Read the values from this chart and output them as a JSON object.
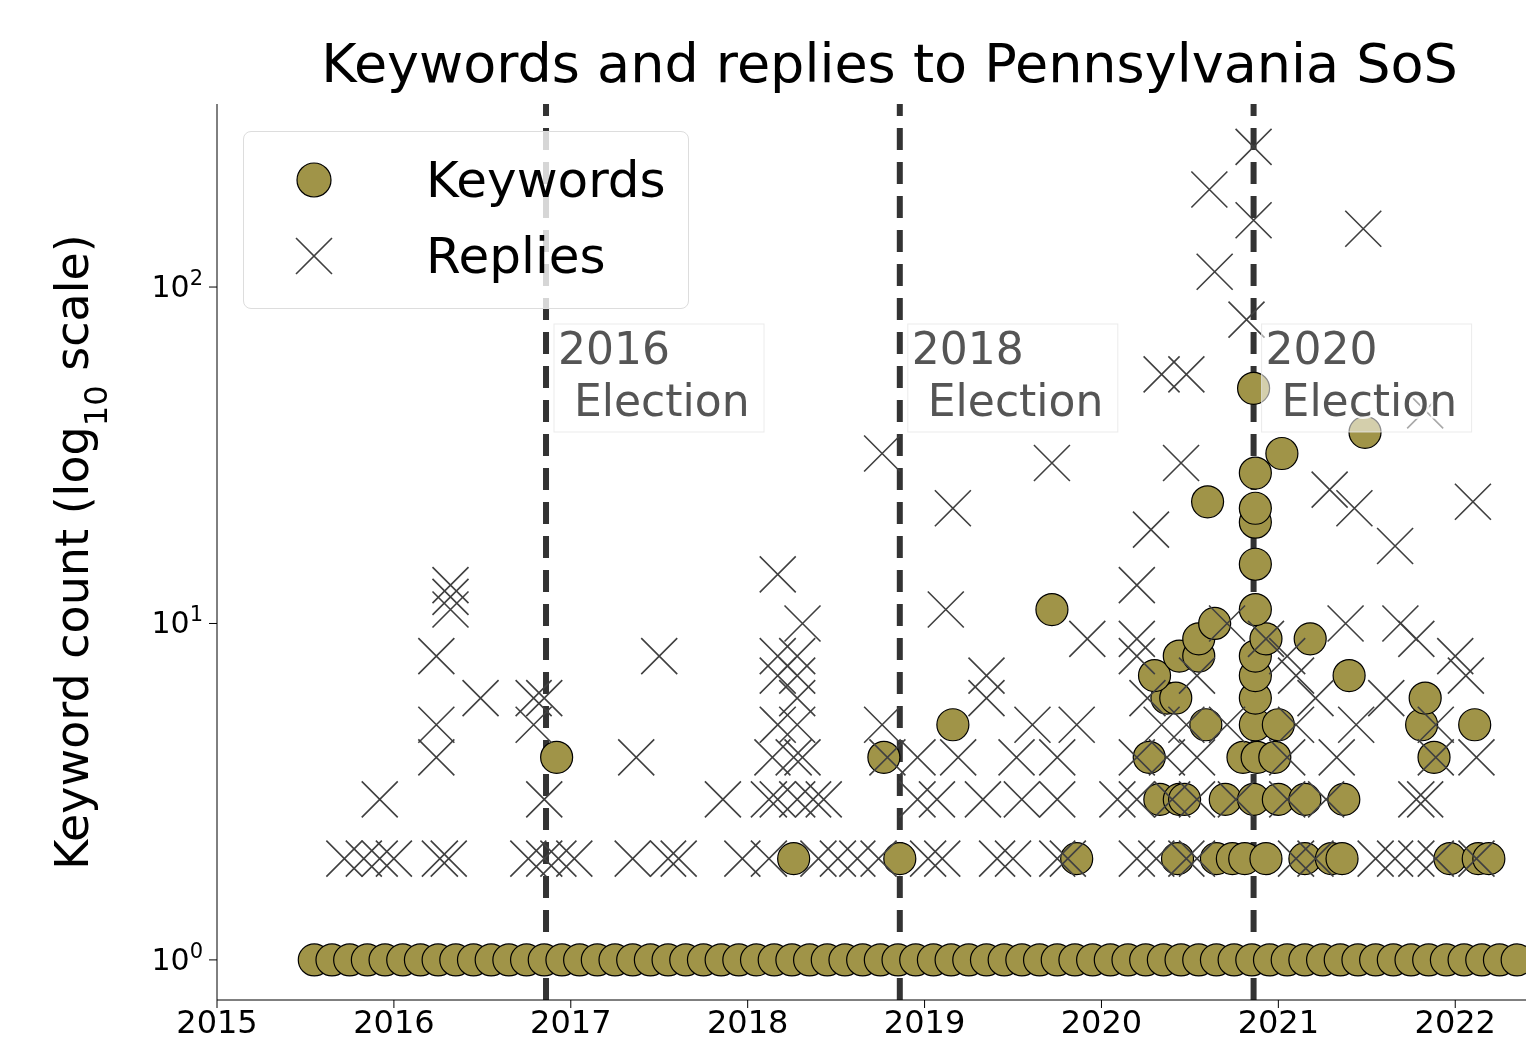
{
  "chart_data": {
    "type": "scatter",
    "title": "Keywords and replies to Pennsylvania SoS",
    "ylabel": "Keyword count (log$_{10}$ scale)",
    "xlim": [
      2015,
      2022.4
    ],
    "xticks": [
      2015,
      2016,
      2017,
      2018,
      2019,
      2020,
      2021,
      2022
    ],
    "ylim": [
      0.76,
      350
    ],
    "yticks": [
      {
        "value": 1,
        "label": "10$^{0}$"
      },
      {
        "value": 10,
        "label": "10$^{1}$"
      },
      {
        "value": 100,
        "label": "10$^{2}$"
      }
    ],
    "log": "y",
    "grid": false,
    "legend": "top left",
    "ref_lines": [
      {
        "axis": "x",
        "value": 2016.86,
        "label": "2016 Election",
        "color": "#333333",
        "line_style": "dashed"
      },
      {
        "axis": "x",
        "value": 2018.86,
        "label": "2018 Election",
        "color": "#333333",
        "line_style": "dashed"
      },
      {
        "axis": "x",
        "value": 2020.86,
        "label": "2020 Election",
        "color": "#333333",
        "line_style": "dashed"
      }
    ],
    "series": [
      {
        "name": "Keywords",
        "color": "#a09448",
        "marker": "circle",
        "x": [
          2015.55,
          2015.65,
          2015.75,
          2015.85,
          2015.95,
          2016.05,
          2016.15,
          2016.25,
          2016.35,
          2016.45,
          2016.55,
          2016.65,
          2016.75,
          2016.85,
          2016.95,
          2017.05,
          2017.15,
          2017.25,
          2017.35,
          2017.45,
          2017.55,
          2017.65,
          2017.75,
          2017.85,
          2017.95,
          2018.05,
          2018.15,
          2018.25,
          2018.35,
          2018.45,
          2018.55,
          2018.65,
          2018.75,
          2018.85,
          2018.95,
          2019.05,
          2019.15,
          2019.25,
          2019.35,
          2019.45,
          2019.55,
          2019.65,
          2019.75,
          2019.85,
          2019.95,
          2020.05,
          2020.15,
          2020.25,
          2020.35,
          2020.45,
          2020.55,
          2020.65,
          2020.75,
          2020.85,
          2020.95,
          2021.05,
          2021.15,
          2021.25,
          2021.35,
          2021.45,
          2021.55,
          2021.65,
          2021.75,
          2021.85,
          2021.95,
          2022.05,
          2022.15,
          2022.25,
          2022.35,
          2016.92,
          2018.26,
          2018.77,
          2018.86,
          2019.16,
          2019.72,
          2019.86,
          2020.43,
          2020.65,
          2020.74,
          2020.81,
          2020.93,
          2021.15,
          2021.3,
          2021.36,
          2021.97,
          2022.13,
          2022.19,
          2020.33,
          2020.44,
          2020.47,
          2020.7,
          2020.86,
          2021.0,
          2021.15,
          2021.37,
          2020.27,
          2020.8,
          2020.88,
          2020.98,
          2021.88,
          2020.59,
          2020.87,
          2021.0,
          2021.81,
          2022.11,
          2020.37,
          2020.42,
          2021.83,
          2020.87,
          2020.3,
          2021.4,
          2020.87,
          2020.44,
          2020.55,
          2020.87,
          2020.55,
          2020.93,
          2021.18,
          2020.64,
          2020.87,
          2020.87,
          2020.87,
          2020.87,
          2020.6,
          2020.87,
          2021.02,
          2021.49,
          2020.86
        ],
        "values": [
          1,
          1,
          1,
          1,
          1,
          1,
          1,
          1,
          1,
          1,
          1,
          1,
          1,
          1,
          1,
          1,
          1,
          1,
          1,
          1,
          1,
          1,
          1,
          1,
          1,
          1,
          1,
          1,
          1,
          1,
          1,
          1,
          1,
          1,
          1,
          1,
          1,
          1,
          1,
          1,
          1,
          1,
          1,
          1,
          1,
          1,
          1,
          1,
          1,
          1,
          1,
          1,
          1,
          1,
          1,
          1,
          1,
          1,
          1,
          1,
          1,
          1,
          1,
          1,
          1,
          1,
          1,
          1,
          1,
          4,
          2,
          4,
          2,
          5,
          11,
          2,
          2,
          2,
          2,
          2,
          2,
          2,
          2,
          2,
          2,
          2,
          2,
          3,
          3,
          3,
          3,
          3,
          3,
          3,
          3,
          4,
          4,
          4,
          4,
          4,
          5,
          5,
          5,
          5,
          5,
          6,
          6,
          6,
          6,
          7,
          7,
          7,
          8,
          8,
          8,
          9,
          9,
          9,
          10,
          11,
          15,
          20,
          22,
          23,
          28,
          32,
          37,
          50
        ]
      },
      {
        "name": "Replies",
        "color": "#404040",
        "marker": "cross",
        "x": [
          2015.72,
          2015.83,
          2015.92,
          2016.0,
          2016.26,
          2016.31,
          2016.76,
          2016.85,
          2016.93,
          2017.02,
          2017.35,
          2017.55,
          2017.61,
          2017.97,
          2018.12,
          2018.4,
          2018.51,
          2018.62,
          2018.74,
          2019.02,
          2019.1,
          2019.41,
          2019.5,
          2019.75,
          2019.81,
          2020.2,
          2020.31,
          2020.48,
          2020.54,
          2021.1,
          2021.21,
          2021.55,
          2021.66,
          2021.78,
          2021.89,
          2022.12,
          2015.92,
          2016.85,
          2017.86,
          2018.12,
          2018.17,
          2018.28,
          2018.37,
          2018.43,
          2018.96,
          2019.07,
          2019.33,
          2019.55,
          2019.75,
          2020.09,
          2020.2,
          2020.4,
          2020.54,
          2020.76,
          2021.05,
          2021.27,
          2021.78,
          2021.83,
          2016.24,
          2017.37,
          2018.14,
          2018.26,
          2018.31,
          2018.79,
          2018.96,
          2019.19,
          2019.52,
          2019.75,
          2020.2,
          2020.37,
          2020.54,
          2021.05,
          2021.33,
          2021.89,
          2022.12,
          2016.24,
          2016.79,
          2018.17,
          2018.28,
          2018.76,
          2019.61,
          2019.86,
          2020.34,
          2020.48,
          2020.71,
          2021.1,
          2021.44,
          2021.89,
          2016.49,
          2016.79,
          2016.85,
          2018.28,
          2019.35,
          2020.26,
          2021.21,
          2021.61,
          2018.17,
          2018.28,
          2019.35,
          2020.54,
          2021.1,
          2022.06,
          2016.24,
          2017.5,
          2018.17,
          2018.28,
          2020.2,
          2021.05,
          2022.0,
          2019.92,
          2020.2,
          2020.93,
          2021.78,
          2018.31,
          2020.71,
          2021.38,
          2021.69,
          2016.32,
          2019.12,
          2016.32,
          2016.32,
          2020.2,
          2018.17,
          2021.66,
          2020.28,
          2019.16,
          2021.43,
          2022.1,
          2021.29,
          2019.72,
          2020.45,
          2018.76,
          2021.83,
          2020.34,
          2020.48,
          2020.82,
          2020.64,
          2021.48,
          2020.86,
          2020.61,
          2020.86
        ],
        "values": [
          2,
          2,
          2,
          2,
          2,
          2,
          2,
          2,
          2,
          2,
          2,
          2,
          2,
          2,
          2,
          2,
          2,
          2,
          2,
          2,
          2,
          2,
          2,
          2,
          2,
          2,
          2,
          2,
          2,
          2,
          2,
          2,
          2,
          2,
          2,
          2,
          3,
          3,
          3,
          3,
          3,
          3,
          3,
          3,
          3,
          3,
          3,
          3,
          3,
          3,
          3,
          3,
          3,
          3,
          3,
          3,
          3,
          3,
          4,
          4,
          4,
          4,
          4,
          4,
          4,
          4,
          4,
          4,
          4,
          4,
          4,
          4,
          4,
          4,
          4,
          5,
          5,
          5,
          5,
          5,
          5,
          5,
          5,
          5,
          5,
          5,
          5,
          5,
          6,
          6,
          6,
          6,
          6,
          6,
          6,
          6,
          7,
          7,
          7,
          7,
          7,
          7,
          8,
          8,
          8,
          8,
          8,
          8,
          8,
          9,
          9,
          9,
          9,
          10,
          10,
          10,
          10,
          11,
          11,
          12,
          13,
          13,
          14,
          17,
          19,
          22,
          22,
          23,
          25,
          30,
          30,
          32,
          43,
          55,
          55,
          80,
          111,
          149,
          158,
          195,
          261
        ]
      }
    ]
  }
}
